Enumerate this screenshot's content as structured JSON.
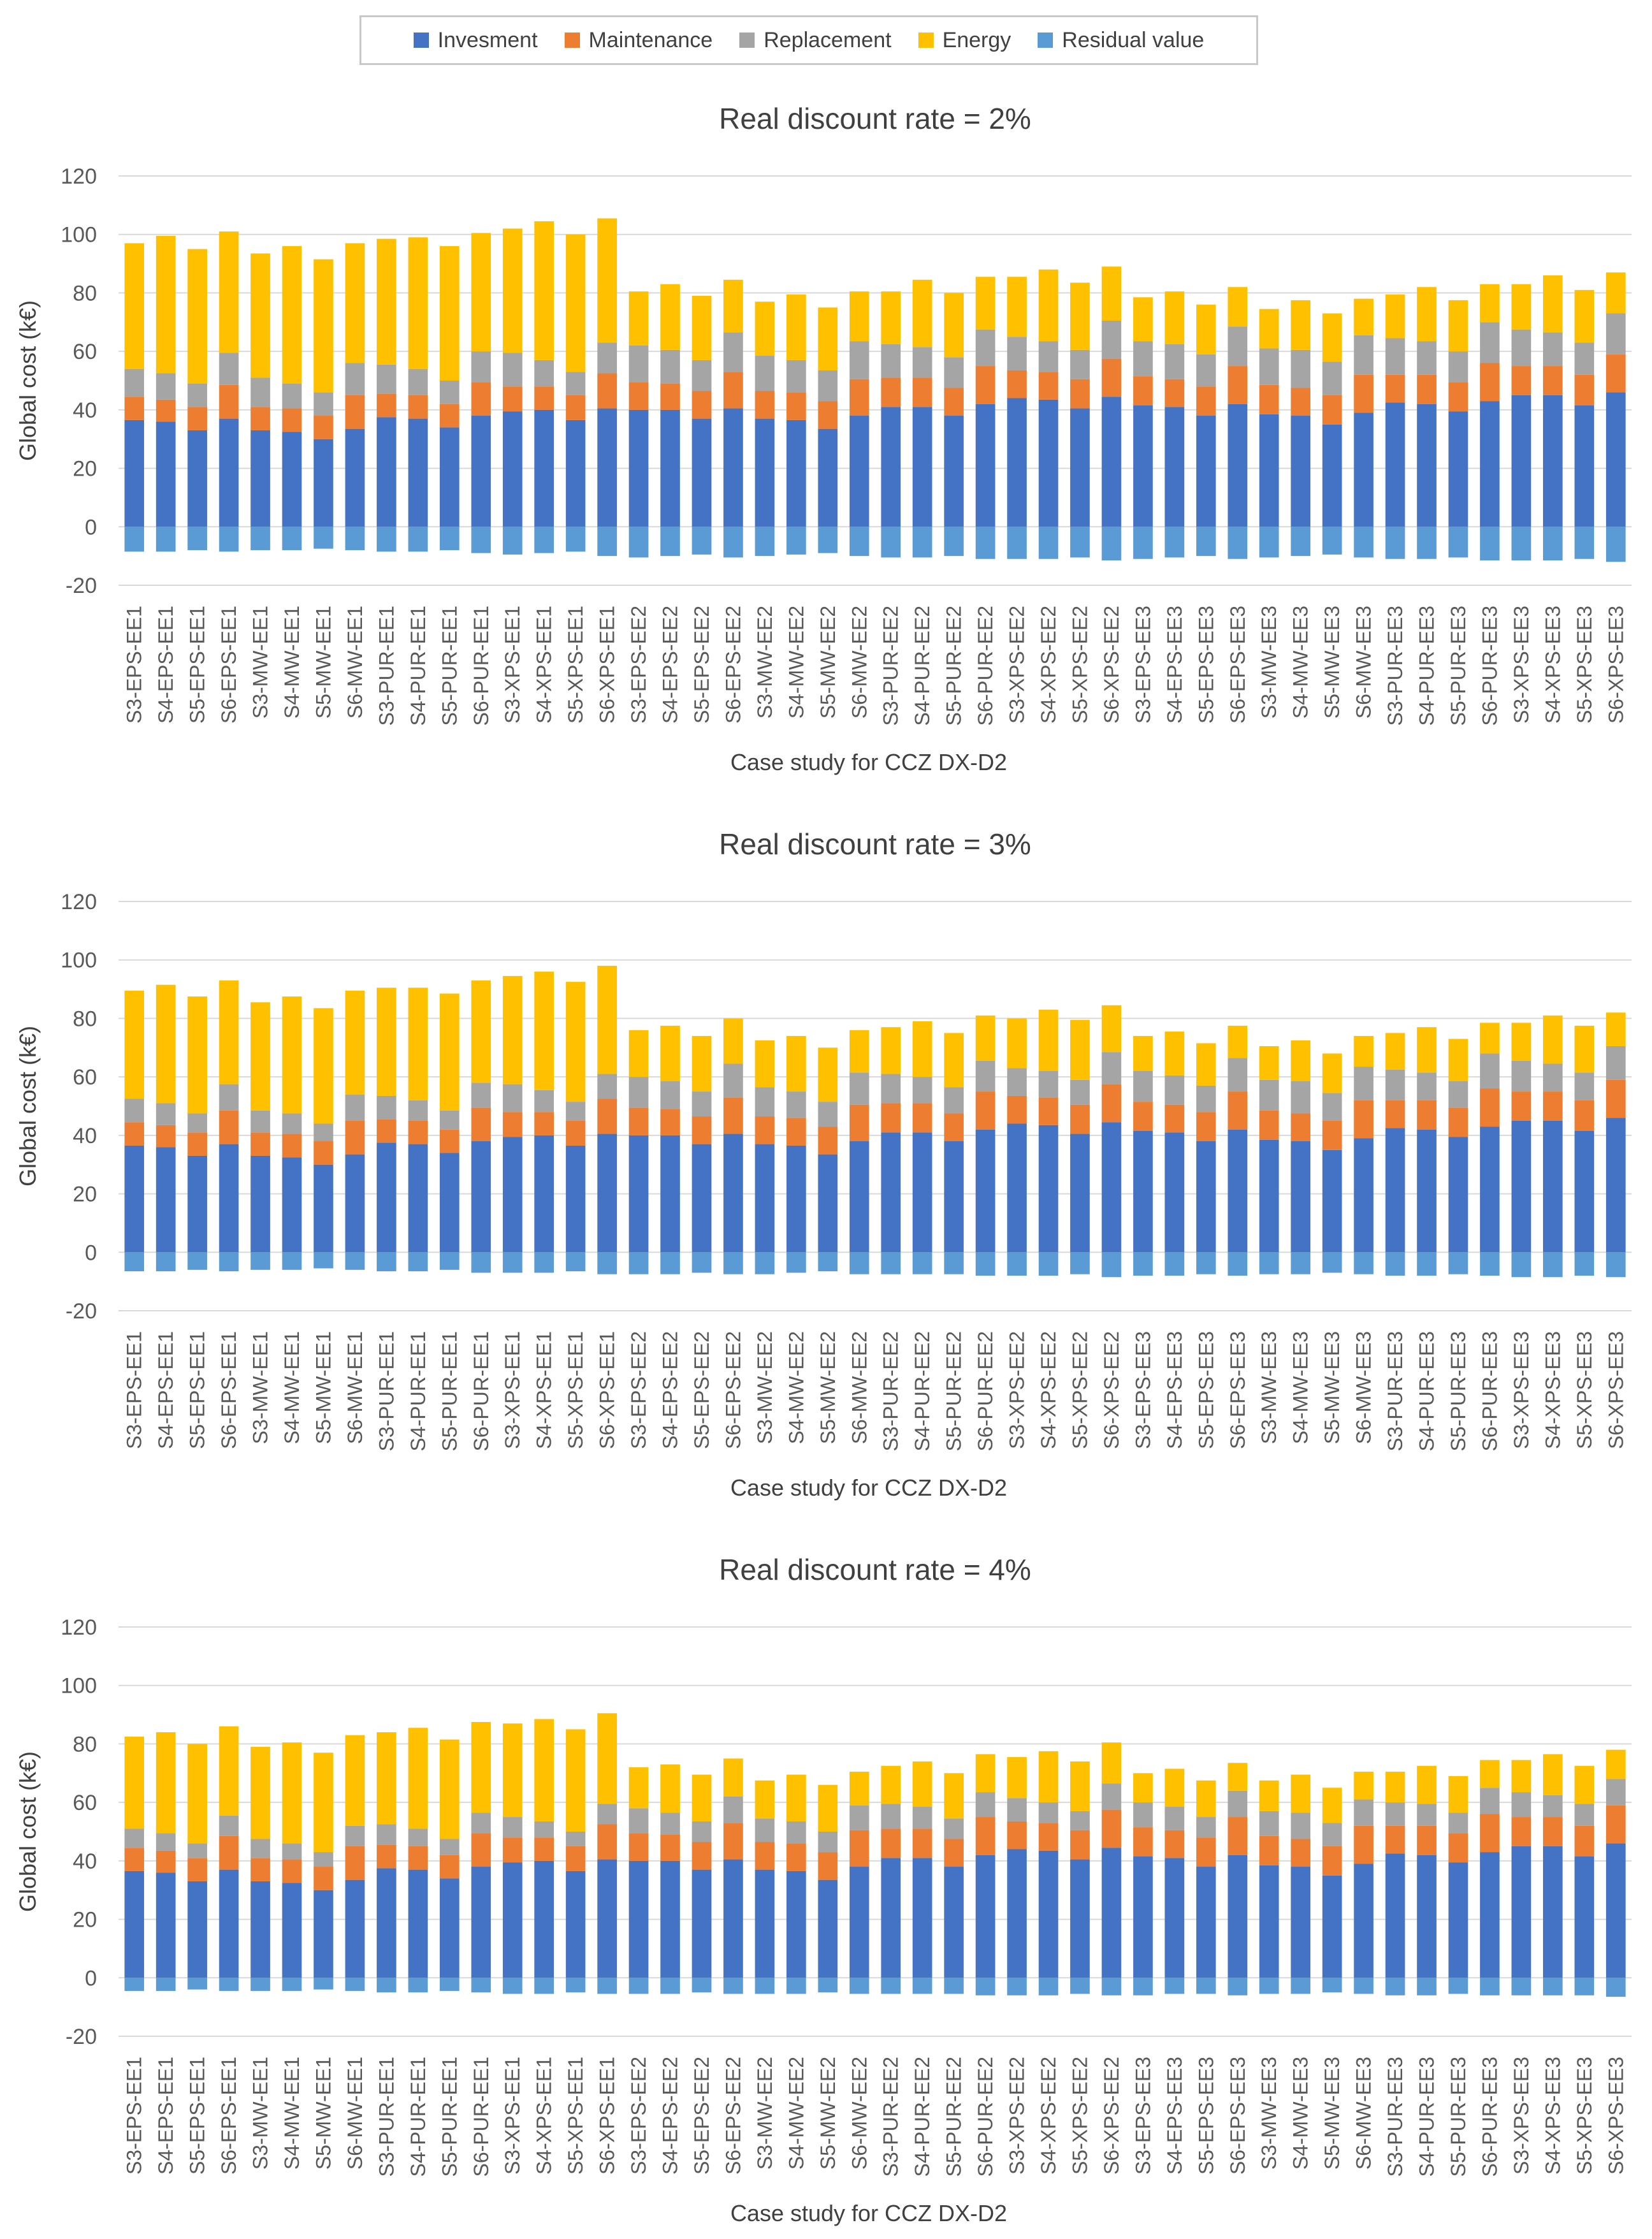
{
  "legend": {
    "items": [
      {
        "label": "Invesment",
        "color": "#4472c4"
      },
      {
        "label": "Maintenance",
        "color": "#ed7d31"
      },
      {
        "label": "Replacement",
        "color": "#a5a5a5"
      },
      {
        "label": "Energy",
        "color": "#ffc000"
      },
      {
        "label": "Residual value",
        "color": "#5b9bd5"
      }
    ]
  },
  "chart_data": [
    {
      "type": "bar",
      "title": "Real discount rate = 2%",
      "xlabel": "Case study for CCZ DX-D2",
      "ylabel": "Global cost (k€)",
      "ylim": [
        -20,
        120
      ],
      "yticks": [
        "120",
        "100",
        "80",
        "60",
        "40",
        "20",
        "0",
        "-20"
      ],
      "categories": [
        "S3-EPS-EE1",
        "S4-EPS-EE1",
        "S5-EPS-EE1",
        "S6-EPS-EE1",
        "S3-MW-EE1",
        "S4-MW-EE1",
        "S5-MW-EE1",
        "S6-MW-EE1",
        "S3-PUR-EE1",
        "S4-PUR-EE1",
        "S5-PUR-EE1",
        "S6-PUR-EE1",
        "S3-XPS-EE1",
        "S4-XPS-EE1",
        "S5-XPS-EE1",
        "S6-XPS-EE1",
        "S3-EPS-EE2",
        "S4-EPS-EE2",
        "S5-EPS-EE2",
        "S6-EPS-EE2",
        "S3-MW-EE2",
        "S4-MW-EE2",
        "S5-MW-EE2",
        "S6-MW-EE2",
        "S3-PUR-EE2",
        "S4-PUR-EE2",
        "S5-PUR-EE2",
        "S6-PUR-EE2",
        "S3-XPS-EE2",
        "S4-XPS-EE2",
        "S5-XPS-EE2",
        "S6-XPS-EE2",
        "S3-EPS-EE3",
        "S4-EPS-EE3",
        "S5-EPS-EE3",
        "S6-EPS-EE3",
        "S3-MW-EE3",
        "S4-MW-EE3",
        "S5-MW-EE3",
        "S6-MW-EE3",
        "S3-PUR-EE3",
        "S4-PUR-EE3",
        "S5-PUR-EE3",
        "S6-PUR-EE3",
        "S3-XPS-EE3",
        "S4-XPS-EE3",
        "S5-XPS-EE3",
        "S6-XPS-EE3"
      ],
      "series": [
        {
          "name": "Invesment",
          "values": [
            36.5,
            36,
            33,
            37,
            33,
            32.5,
            30,
            33.5,
            37.5,
            37,
            34,
            38,
            39.5,
            40,
            36.5,
            40.5,
            40,
            40,
            37,
            40.5,
            37,
            36.5,
            33.5,
            38,
            41,
            41,
            38,
            42,
            44,
            43.5,
            40.5,
            44.5,
            41.5,
            41,
            38,
            42,
            38.5,
            38,
            35,
            39,
            42.5,
            42,
            39.5,
            43,
            45,
            45,
            41.5,
            46
          ]
        },
        {
          "name": "Maintenance",
          "values": [
            8,
            7.5,
            8,
            11.5,
            8,
            8,
            8,
            11.5,
            8,
            8,
            8,
            11.5,
            8.5,
            8,
            8.5,
            12,
            9.5,
            9,
            9.5,
            12.5,
            9.5,
            9.5,
            9.5,
            12.5,
            10,
            10,
            9.5,
            13,
            9.5,
            9.5,
            10,
            13,
            10,
            9.5,
            10,
            13,
            10,
            9.5,
            10,
            13,
            9.5,
            10,
            10,
            13,
            10,
            10,
            10.5,
            13
          ]
        },
        {
          "name": "Replacement",
          "values": [
            9.5,
            9,
            8,
            11,
            10,
            8.5,
            8,
            11,
            10,
            9,
            8,
            10.5,
            11.5,
            9,
            8,
            10.5,
            12.5,
            11.5,
            10.5,
            13.5,
            12,
            11,
            10.5,
            13,
            11.5,
            10.5,
            10.5,
            12.5,
            11.5,
            10.5,
            10,
            13,
            12,
            12,
            11,
            13.5,
            12.5,
            13,
            11.5,
            13.5,
            12.5,
            11.5,
            10.5,
            14,
            12.5,
            11.5,
            11,
            14
          ]
        },
        {
          "name": "Energy",
          "values": [
            43,
            47,
            46,
            41.5,
            42.5,
            47,
            45.5,
            41,
            43,
            45,
            46,
            40.5,
            42.5,
            47.5,
            47,
            42.5,
            18.5,
            22.5,
            22,
            18,
            18.5,
            22.5,
            21.5,
            17,
            18,
            23,
            22,
            18,
            20.5,
            24.5,
            23,
            18.5,
            15,
            18,
            17,
            13.5,
            13.5,
            17,
            16.5,
            12.5,
            15,
            18.5,
            17.5,
            13,
            15.5,
            19.5,
            18,
            14
          ]
        },
        {
          "name": "Residual value",
          "values": [
            -8.5,
            -8.5,
            -8,
            -8.5,
            -8,
            -8,
            -7.5,
            -8,
            -8.5,
            -8.5,
            -8,
            -9,
            -9.5,
            -9,
            -8.5,
            -10,
            -10.5,
            -10,
            -9.5,
            -10.5,
            -10,
            -9.5,
            -9,
            -10,
            -10.5,
            -10.5,
            -10,
            -11,
            -11,
            -11,
            -10.5,
            -11.5,
            -11,
            -10.5,
            -10,
            -11,
            -10.5,
            -10,
            -9.5,
            -10.5,
            -11,
            -11,
            -10.5,
            -11.5,
            -11.5,
            -11.5,
            -11,
            -12
          ]
        }
      ]
    },
    {
      "type": "bar",
      "title": "Real discount rate = 3%",
      "xlabel": "Case study for CCZ DX-D2",
      "ylabel": "Global cost (k€)",
      "ylim": [
        -20,
        120
      ],
      "yticks": [
        "120",
        "100",
        "80",
        "60",
        "40",
        "20",
        "0",
        "-20"
      ],
      "categories": [
        "S3-EPS-EE1",
        "S4-EPS-EE1",
        "S5-EPS-EE1",
        "S6-EPS-EE1",
        "S3-MW-EE1",
        "S4-MW-EE1",
        "S5-MW-EE1",
        "S6-MW-EE1",
        "S3-PUR-EE1",
        "S4-PUR-EE1",
        "S5-PUR-EE1",
        "S6-PUR-EE1",
        "S3-XPS-EE1",
        "S4-XPS-EE1",
        "S5-XPS-EE1",
        "S6-XPS-EE1",
        "S3-EPS-EE2",
        "S4-EPS-EE2",
        "S5-EPS-EE2",
        "S6-EPS-EE2",
        "S3-MW-EE2",
        "S4-MW-EE2",
        "S5-MW-EE2",
        "S6-MW-EE2",
        "S3-PUR-EE2",
        "S4-PUR-EE2",
        "S5-PUR-EE2",
        "S6-PUR-EE2",
        "S3-XPS-EE2",
        "S4-XPS-EE2",
        "S5-XPS-EE2",
        "S6-XPS-EE2",
        "S3-EPS-EE3",
        "S4-EPS-EE3",
        "S5-EPS-EE3",
        "S6-EPS-EE3",
        "S3-MW-EE3",
        "S4-MW-EE3",
        "S5-MW-EE3",
        "S6-MW-EE3",
        "S3-PUR-EE3",
        "S4-PUR-EE3",
        "S5-PUR-EE3",
        "S6-PUR-EE3",
        "S3-XPS-EE3",
        "S4-XPS-EE3",
        "S5-XPS-EE3",
        "S6-XPS-EE3"
      ],
      "series": [
        {
          "name": "Invesment",
          "values": [
            36.5,
            36,
            33,
            37,
            33,
            32.5,
            30,
            33.5,
            37.5,
            37,
            34,
            38,
            39.5,
            40,
            36.5,
            40.5,
            40,
            40,
            37,
            40.5,
            37,
            36.5,
            33.5,
            38,
            41,
            41,
            38,
            42,
            44,
            43.5,
            40.5,
            44.5,
            41.5,
            41,
            38,
            42,
            38.5,
            38,
            35,
            39,
            42.5,
            42,
            39.5,
            43,
            45,
            45,
            41.5,
            46
          ]
        },
        {
          "name": "Maintenance",
          "values": [
            8,
            7.5,
            8,
            11.5,
            8,
            8,
            8,
            11.5,
            8,
            8,
            8,
            11.5,
            8.5,
            8,
            8.5,
            12,
            9.5,
            9,
            9.5,
            12.5,
            9.5,
            9.5,
            9.5,
            12.5,
            10,
            10,
            9.5,
            13,
            9.5,
            9.5,
            10,
            13,
            10,
            9.5,
            10,
            13,
            10,
            9.5,
            10,
            13,
            9.5,
            10,
            10,
            13,
            10,
            10,
            10.5,
            13
          ]
        },
        {
          "name": "Replacement",
          "values": [
            8,
            7.5,
            6.5,
            9,
            7.5,
            7,
            6,
            9,
            8,
            7,
            6.5,
            8.5,
            9.5,
            7.5,
            6.5,
            8.5,
            10.5,
            9.5,
            8.5,
            11.5,
            10,
            9,
            8.5,
            11,
            10,
            9,
            9,
            10.5,
            9.5,
            9,
            8.5,
            11,
            10.5,
            10,
            9,
            11.5,
            10.5,
            11,
            9.5,
            11.5,
            10.5,
            9.5,
            9,
            12,
            10.5,
            9.5,
            9.5,
            11.5
          ]
        },
        {
          "name": "Energy",
          "values": [
            37,
            40.5,
            40,
            35.5,
            37,
            40,
            39.5,
            35.5,
            37,
            38.5,
            40,
            35,
            37,
            40.5,
            41,
            37,
            16,
            19,
            19,
            15.5,
            16,
            19,
            18.5,
            14.5,
            16,
            19,
            18.5,
            15.5,
            17,
            21,
            20.5,
            16,
            12,
            15,
            14.5,
            11,
            11.5,
            14,
            13.5,
            10.5,
            12.5,
            15.5,
            14.5,
            10.5,
            13,
            16.5,
            16,
            11.5
          ]
        },
        {
          "name": "Residual value",
          "values": [
            -6.5,
            -6.5,
            -6,
            -6.5,
            -6,
            -6,
            -5.5,
            -6,
            -6.5,
            -6.5,
            -6,
            -7,
            -7,
            -7,
            -6.5,
            -7.5,
            -7.5,
            -7.5,
            -7,
            -7.5,
            -7.5,
            -7,
            -6.5,
            -7.5,
            -7.5,
            -7.5,
            -7.5,
            -8,
            -8,
            -8,
            -7.5,
            -8.5,
            -8,
            -8,
            -7.5,
            -8,
            -7.5,
            -7.5,
            -7,
            -7.5,
            -8,
            -8,
            -7.5,
            -8,
            -8.5,
            -8.5,
            -8,
            -8.5
          ]
        }
      ]
    },
    {
      "type": "bar",
      "title": "Real discount rate = 4%",
      "xlabel": "Case study for CCZ DX-D2",
      "ylabel": "Global cost (k€)",
      "ylim": [
        -20,
        120
      ],
      "yticks": [
        "120",
        "100",
        "80",
        "60",
        "40",
        "20",
        "0",
        "-20"
      ],
      "categories": [
        "S3-EPS-EE1",
        "S4-EPS-EE1",
        "S5-EPS-EE1",
        "S6-EPS-EE1",
        "S3-MW-EE1",
        "S4-MW-EE1",
        "S5-MW-EE1",
        "S6-MW-EE1",
        "S3-PUR-EE1",
        "S4-PUR-EE1",
        "S5-PUR-EE1",
        "S6-PUR-EE1",
        "S3-XPS-EE1",
        "S4-XPS-EE1",
        "S5-XPS-EE1",
        "S6-XPS-EE1",
        "S3-EPS-EE2",
        "S4-EPS-EE2",
        "S5-EPS-EE2",
        "S6-EPS-EE2",
        "S3-MW-EE2",
        "S4-MW-EE2",
        "S5-MW-EE2",
        "S6-MW-EE2",
        "S3-PUR-EE2",
        "S4-PUR-EE2",
        "S5-PUR-EE2",
        "S6-PUR-EE2",
        "S3-XPS-EE2",
        "S4-XPS-EE2",
        "S5-XPS-EE2",
        "S6-XPS-EE2",
        "S3-EPS-EE3",
        "S4-EPS-EE3",
        "S5-EPS-EE3",
        "S6-EPS-EE3",
        "S3-MW-EE3",
        "S4-MW-EE3",
        "S5-MW-EE3",
        "S6-MW-EE3",
        "S3-PUR-EE3",
        "S4-PUR-EE3",
        "S5-PUR-EE3",
        "S6-PUR-EE3",
        "S3-XPS-EE3",
        "S4-XPS-EE3",
        "S5-XPS-EE3",
        "S6-XPS-EE3"
      ],
      "series": [
        {
          "name": "Invesment",
          "values": [
            36.5,
            36,
            33,
            37,
            33,
            32.5,
            30,
            33.5,
            37.5,
            37,
            34,
            38,
            39.5,
            40,
            36.5,
            40.5,
            40,
            40,
            37,
            40.5,
            37,
            36.5,
            33.5,
            38,
            41,
            41,
            38,
            42,
            44,
            43.5,
            40.5,
            44.5,
            41.5,
            41,
            38,
            42,
            38.5,
            38,
            35,
            39,
            42.5,
            42,
            39.5,
            43,
            45,
            45,
            41.5,
            46
          ]
        },
        {
          "name": "Maintenance",
          "values": [
            8,
            7.5,
            8,
            11.5,
            8,
            8,
            8,
            11.5,
            8,
            8,
            8,
            11.5,
            8.5,
            8,
            8.5,
            12,
            9.5,
            9,
            9.5,
            12.5,
            9.5,
            9.5,
            9.5,
            12.5,
            10,
            10,
            9.5,
            13,
            9.5,
            9.5,
            10,
            13,
            10,
            9.5,
            10,
            13,
            10,
            9.5,
            10,
            13,
            9.5,
            10,
            10,
            13,
            10,
            10,
            10.5,
            13
          ]
        },
        {
          "name": "Replacement",
          "values": [
            6.5,
            6,
            5,
            7,
            6.5,
            5.5,
            5,
            7,
            7,
            6,
            5.5,
            7,
            7,
            5.5,
            5,
            7,
            8.5,
            7.5,
            7,
            9,
            8,
            7.5,
            7,
            8.5,
            8.5,
            7.5,
            7,
            8.5,
            8,
            7,
            6.5,
            9,
            8.5,
            8,
            7,
            9,
            8.5,
            9,
            8,
            9,
            8,
            7.5,
            7,
            9,
            8.5,
            7.5,
            7.5,
            9
          ]
        },
        {
          "name": "Energy",
          "values": [
            31.5,
            34.5,
            34,
            30.5,
            31.5,
            34.5,
            34,
            31,
            31.5,
            34.5,
            34,
            31,
            32,
            35,
            35,
            31,
            14,
            16.5,
            16,
            13,
            13,
            16,
            16,
            11.5,
            13,
            15.5,
            15.5,
            13,
            14,
            17.5,
            17,
            14,
            10,
            13,
            12.5,
            9.5,
            10.5,
            13,
            12,
            9.5,
            10.5,
            13,
            12.5,
            9.5,
            11,
            14,
            13,
            10
          ]
        },
        {
          "name": "Residual value",
          "values": [
            -4.5,
            -4.5,
            -4,
            -4.5,
            -4.5,
            -4.5,
            -4,
            -4.5,
            -5,
            -5,
            -4.5,
            -5,
            -5.5,
            -5.5,
            -5,
            -5.5,
            -5.5,
            -5.5,
            -5,
            -5.5,
            -5.5,
            -5.5,
            -5,
            -5.5,
            -5.5,
            -5.5,
            -5.5,
            -6,
            -6,
            -6,
            -5.5,
            -6,
            -6,
            -5.5,
            -5.5,
            -6,
            -5.5,
            -5.5,
            -5,
            -5.5,
            -6,
            -6,
            -5.5,
            -6,
            -6,
            -6,
            -6,
            -6.5
          ]
        }
      ]
    }
  ]
}
